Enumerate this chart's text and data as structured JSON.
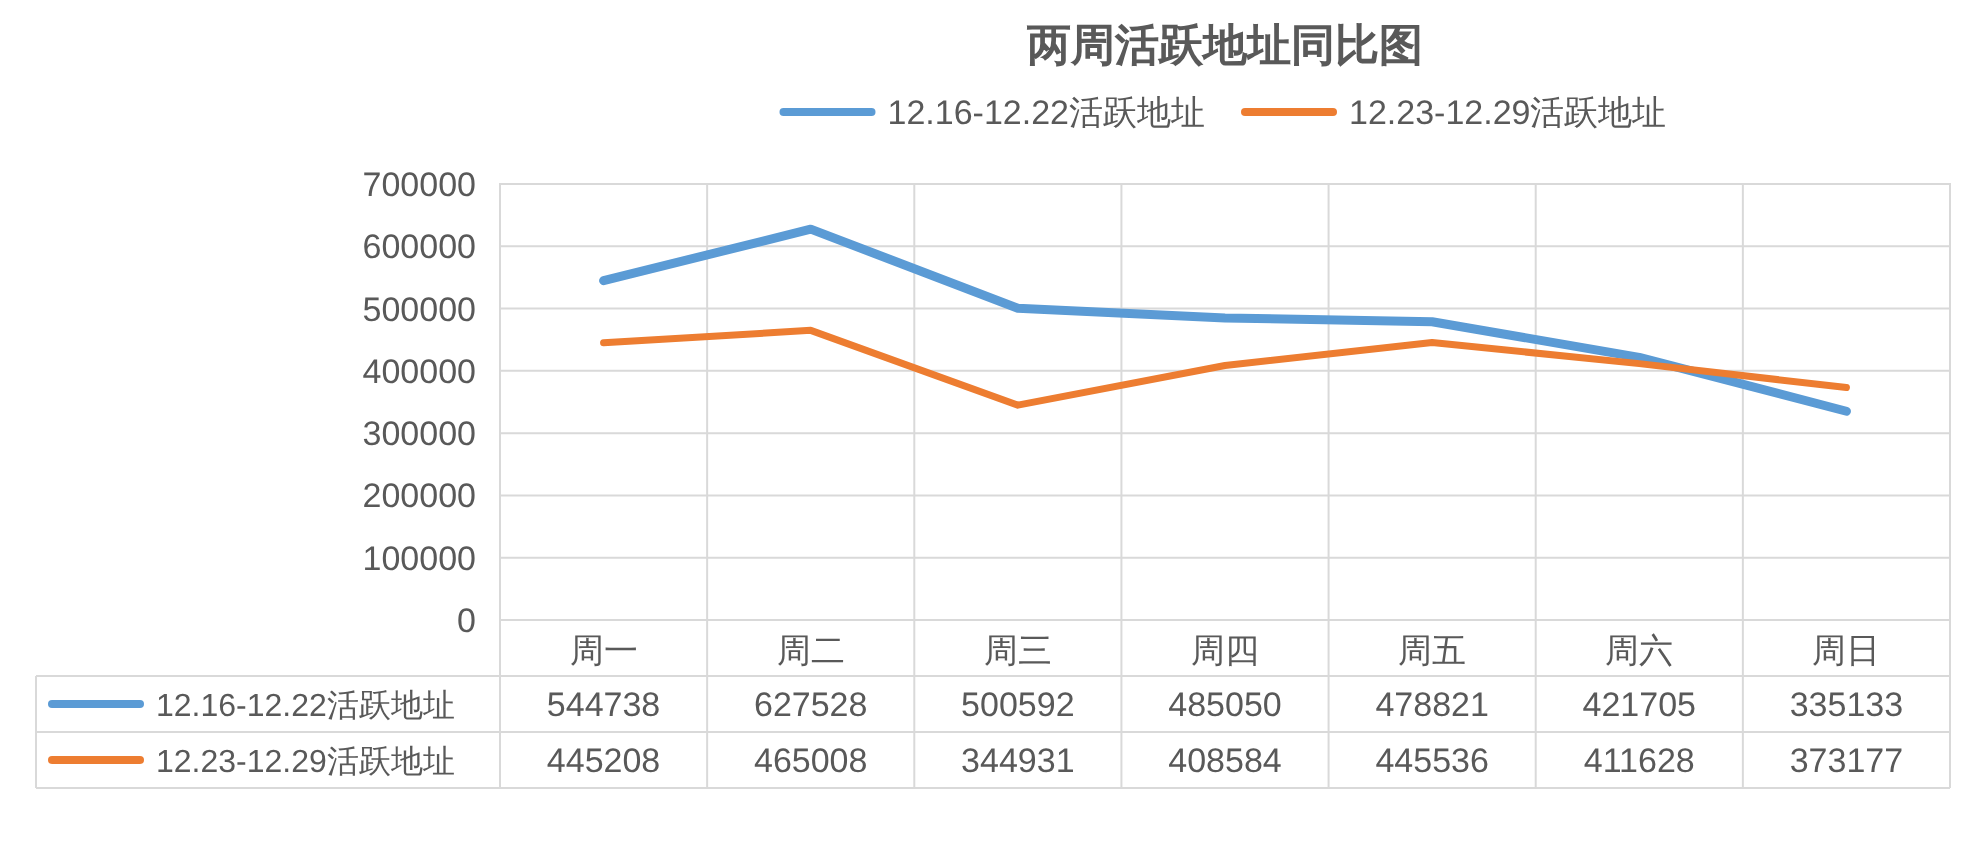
{
  "chart_data": {
    "type": "line",
    "title": "两周活跃地址同比图",
    "categories": [
      "周一",
      "周二",
      "周三",
      "周四",
      "周五",
      "周六",
      "周日"
    ],
    "series": [
      {
        "name": "12.16-12.22活跃地址",
        "color": "#5b9bd5",
        "values": [
          544738,
          627528,
          500592,
          485050,
          478821,
          421705,
          335133
        ]
      },
      {
        "name": "12.23-12.29活跃地址",
        "color": "#ed7d31",
        "values": [
          445208,
          465008,
          344931,
          408584,
          445536,
          411628,
          373177
        ]
      }
    ],
    "ylim": [
      0,
      700000
    ],
    "yticks": [
      0,
      100000,
      200000,
      300000,
      400000,
      500000,
      600000,
      700000
    ],
    "grid": true,
    "legend": "top",
    "data_labels": true,
    "marker": "none",
    "line_style": "solid"
  }
}
